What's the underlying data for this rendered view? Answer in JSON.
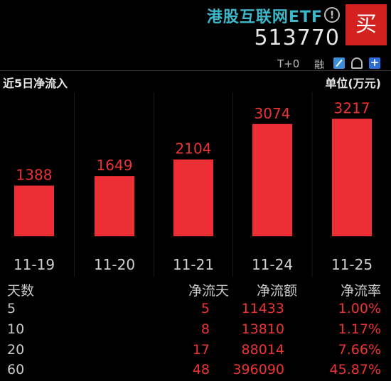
{
  "etf": {
    "name": "港股互联网ETF",
    "code": "513770",
    "buy_label": "买",
    "info_icon": "info-icon",
    "tplus_label": "T+0",
    "rong_label": "融",
    "tools": [
      "edit-icon",
      "bell-icon",
      "plus-icon"
    ]
  },
  "panel": {
    "title": "近5日净流入",
    "unit": "单位(万元)"
  },
  "chart_data": {
    "type": "bar",
    "categories": [
      "11-19",
      "11-20",
      "11-21",
      "11-24",
      "11-25"
    ],
    "values": [
      1388,
      1649,
      2104,
      3074,
      3217
    ],
    "ylim": [
      0,
      3400
    ],
    "bar_color": "#ee2e35",
    "label_color": "#e33"
  },
  "table": {
    "headers": [
      "天数",
      "净流天",
      "净流额",
      "净流率"
    ],
    "rows": [
      [
        "5",
        "5",
        "11433",
        "1.00%"
      ],
      [
        "10",
        "8",
        "13810",
        "1.17%"
      ],
      [
        "20",
        "17",
        "88014",
        "7.66%"
      ],
      [
        "60",
        "48",
        "396090",
        "45.87%"
      ]
    ]
  }
}
